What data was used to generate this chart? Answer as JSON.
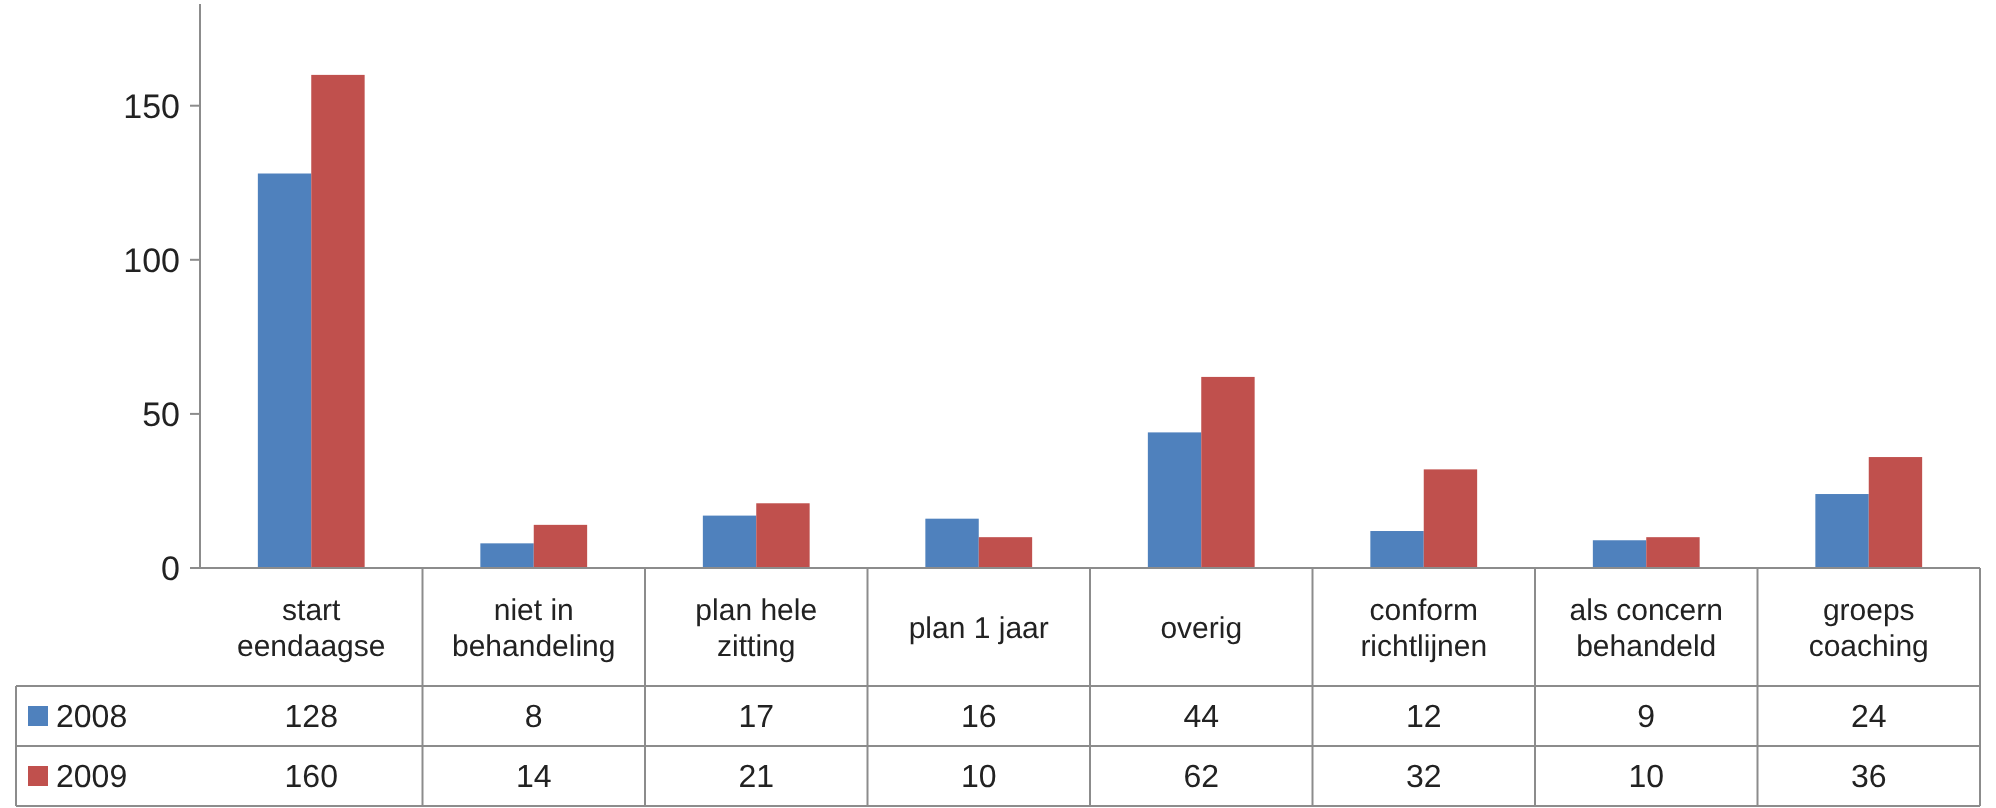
{
  "chart_data": {
    "type": "bar",
    "categories": [
      "start eendaagse",
      "niet in behandeling",
      "plan hele zitting",
      "plan 1 jaar",
      "overig",
      "conform richtlijnen",
      "als concern behandeld",
      "groeps coaching"
    ],
    "series": [
      {
        "name": "2008",
        "color": "#4f81bd",
        "values": [
          128,
          8,
          17,
          16,
          44,
          12,
          9,
          24
        ]
      },
      {
        "name": "2009",
        "color": "#c0504d",
        "values": [
          160,
          14,
          21,
          10,
          62,
          32,
          10,
          36
        ]
      }
    ],
    "ylim": [
      0,
      183
    ],
    "yticks": [
      0,
      50,
      100,
      150
    ],
    "data_labels": true,
    "legend": "bottom",
    "grid": false
  }
}
